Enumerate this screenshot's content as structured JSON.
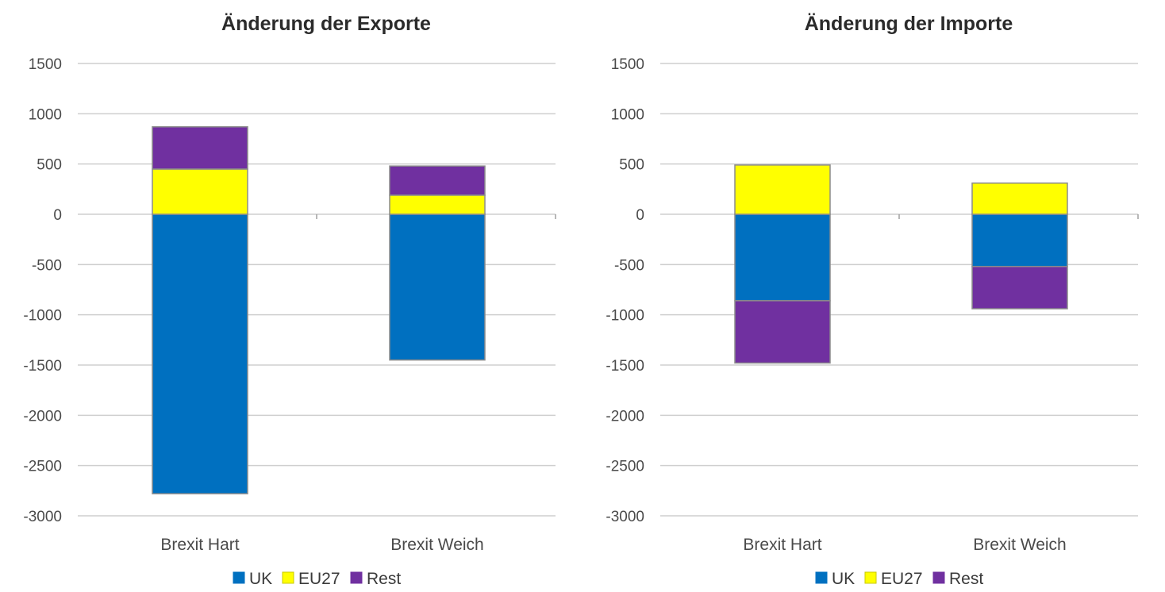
{
  "chart_data": [
    {
      "type": "bar",
      "stacked": true,
      "title": "Änderung der Exporte",
      "xlabel": "",
      "ylabel": "",
      "categories": [
        "Brexit Hart",
        "Brexit Weich"
      ],
      "series": [
        {
          "name": "UK",
          "color": "#0070c0",
          "values": [
            -2780,
            -1450
          ]
        },
        {
          "name": "EU27",
          "color": "#ffff00",
          "values": [
            450,
            190
          ]
        },
        {
          "name": "Rest",
          "color": "#7030a0",
          "values": [
            420,
            290
          ]
        }
      ],
      "ylim": [
        -3000,
        1500
      ],
      "yticks": [
        1500,
        1000,
        500,
        0,
        -500,
        -1000,
        -1500,
        -2000,
        -2500,
        -3000
      ],
      "grid": true,
      "legend": "bottom"
    },
    {
      "type": "bar",
      "stacked": true,
      "title": "Änderung der Importe",
      "xlabel": "",
      "ylabel": "",
      "categories": [
        "Brexit Hart",
        "Brexit Weich"
      ],
      "series": [
        {
          "name": "UK",
          "color": "#0070c0",
          "values": [
            -860,
            -520
          ]
        },
        {
          "name": "EU27",
          "color": "#ffff00",
          "values": [
            490,
            310
          ]
        },
        {
          "name": "Rest",
          "color": "#7030a0",
          "values": [
            -620,
            -420
          ]
        }
      ],
      "ylim": [
        -3000,
        1500
      ],
      "yticks": [
        1500,
        1000,
        500,
        0,
        -500,
        -1000,
        -1500,
        -2000,
        -2500,
        -3000
      ],
      "grid": true,
      "legend": "bottom"
    }
  ]
}
